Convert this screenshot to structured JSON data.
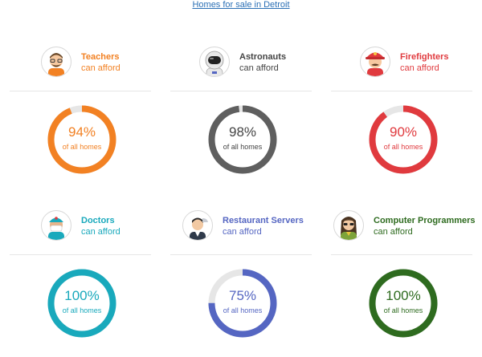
{
  "header": {
    "link_text": "Homes for sale in Detroit"
  },
  "cards": [
    {
      "title": "Teachers",
      "subtitle": "can afford",
      "percent_text": "94%",
      "label": "of all homes",
      "value": 94,
      "color": "#f28123",
      "icon": "teacher-avatar-icon"
    },
    {
      "title": "Astronauts",
      "subtitle": "can afford",
      "percent_text": "98%",
      "label": "of all homes",
      "value": 98,
      "color": "#5f5f5f",
      "icon": "astronaut-avatar-icon"
    },
    {
      "title": "Firefighters",
      "subtitle": "can afford",
      "percent_text": "90%",
      "label": "of all homes",
      "value": 90,
      "color": "#e03a3e",
      "icon": "firefighter-avatar-icon"
    },
    {
      "title": "Doctors",
      "subtitle": "can afford",
      "percent_text": "100%",
      "label": "of all homes",
      "value": 100,
      "color": "#19a9bc",
      "icon": "doctor-avatar-icon"
    },
    {
      "title": "Restaurant Servers",
      "subtitle": "can afford",
      "percent_text": "75%",
      "label": "of all homes",
      "value": 75,
      "color": "#5566c2",
      "icon": "server-avatar-icon"
    },
    {
      "title": "Computer Programmers",
      "subtitle": "can afford",
      "percent_text": "100%",
      "label": "of all homes",
      "value": 100,
      "color": "#2e6b1f",
      "icon": "programmer-avatar-icon"
    }
  ]
}
